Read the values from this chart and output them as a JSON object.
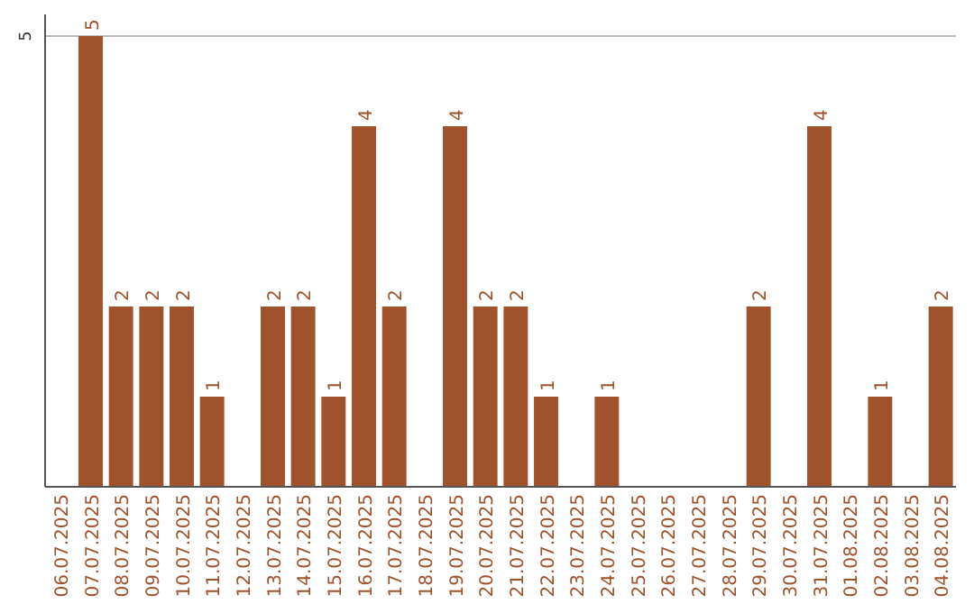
{
  "chart_data": {
    "type": "bar",
    "categories": [
      "06.07.2025",
      "07.07.2025",
      "08.07.2025",
      "09.07.2025",
      "10.07.2025",
      "11.07.2025",
      "12.07.2025",
      "13.07.2025",
      "14.07.2025",
      "15.07.2025",
      "16.07.2025",
      "17.07.2025",
      "18.07.2025",
      "19.07.2025",
      "20.07.2025",
      "21.07.2025",
      "22.07.2025",
      "23.07.2025",
      "24.07.2025",
      "25.07.2025",
      "26.07.2025",
      "27.07.2025",
      "28.07.2025",
      "29.07.2025",
      "30.07.2025",
      "31.07.2025",
      "01.08.2025",
      "02.08.2025",
      "03.08.2025",
      "04.08.2025"
    ],
    "values": [
      0,
      5,
      2,
      2,
      2,
      1,
      0,
      2,
      2,
      1,
      4,
      2,
      0,
      4,
      2,
      2,
      1,
      0,
      1,
      0,
      0,
      0,
      0,
      2,
      0,
      4,
      0,
      1,
      0,
      2
    ],
    "value_labels": [
      null,
      "5",
      "2",
      "2",
      "2",
      "1",
      null,
      "2",
      "2",
      "1",
      "4",
      "2",
      null,
      "4",
      "2",
      "2",
      "1",
      null,
      "1",
      null,
      null,
      null,
      null,
      "2",
      null,
      "4",
      null,
      "1",
      null,
      "2"
    ],
    "color": "#a0522d",
    "ylim": [
      0,
      5.24
    ],
    "yticks": [
      5
    ],
    "grid": "y"
  }
}
